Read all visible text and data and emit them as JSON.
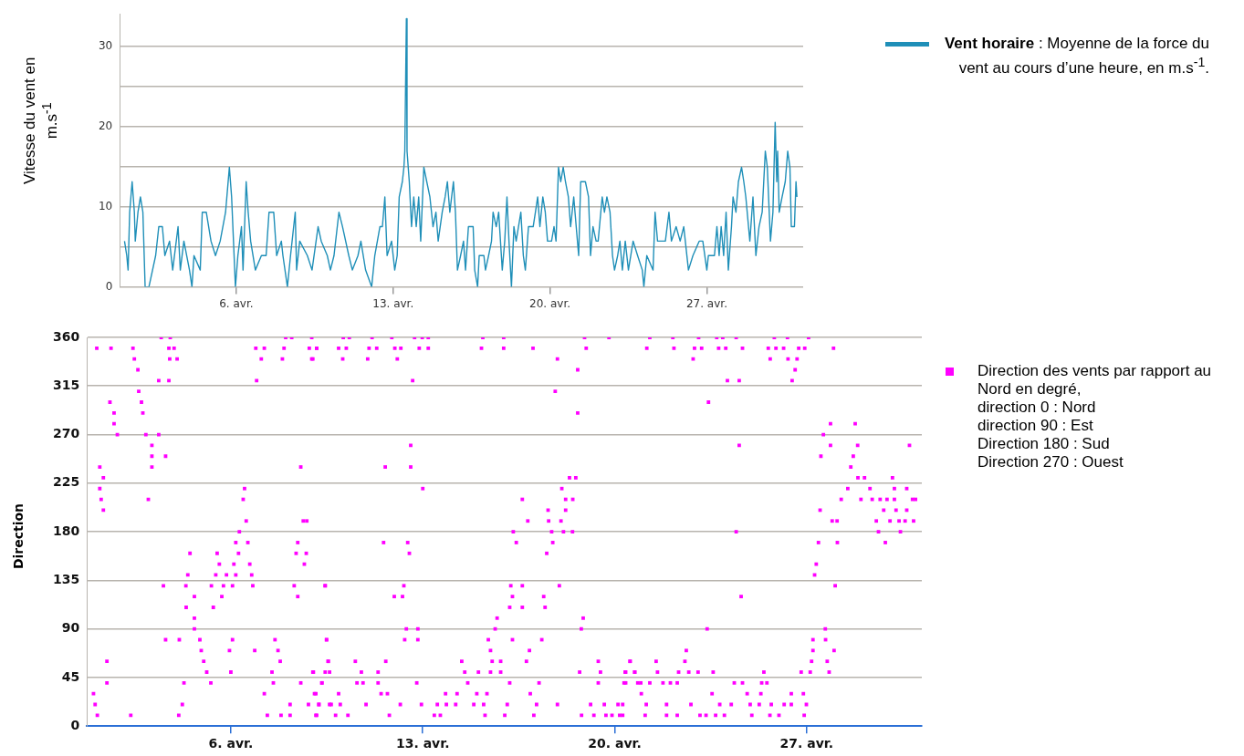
{
  "chart_data": [
    {
      "type": "line",
      "ylabel": "Vitesse du vent en m.s$^{-1}$",
      "legend": "top right",
      "grid": "y",
      "annotations": [
        ": Moyenne de la force du vent au cours d’une heure, en m.s$^{-1}$."
      ],
      "xlim": [
        0.8,
        31.3
      ],
      "xticks": [
        {
          "value": 6,
          "label": "6. avr."
        },
        {
          "value": 13,
          "label": "13. avr."
        },
        {
          "value": 20,
          "label": "20. avr."
        },
        {
          "value": 27,
          "label": "27. avr."
        }
      ],
      "ylim": [
        0,
        34
      ],
      "yticks": [
        0,
        {
          "value": 5,
          "label": null
        },
        10,
        {
          "value": 15,
          "label": null
        },
        20,
        {
          "value": 25,
          "label": null
        },
        30
      ],
      "series": [
        {
          "name": "Vent horaire",
          "color": "#1f8fb8",
          "x": [
            1.01,
            1.11,
            1.17,
            1.24,
            1.35,
            1.45,
            1.49,
            1.61,
            1.72,
            1.83,
            1.93,
            2.1,
            2.4,
            2.54,
            2.7,
            2.81,
            3.02,
            3.16,
            3.4,
            3.5,
            3.66,
            3.91,
            4.02,
            4.11,
            4.39,
            4.48,
            4.66,
            4.87,
            5.07,
            5.28,
            5.52,
            5.69,
            5.79,
            5.96,
            6.07,
            6.23,
            6.3,
            6.44,
            6.53,
            6.64,
            6.85,
            7.12,
            7.33,
            7.46,
            7.67,
            7.8,
            8.01,
            8.08,
            8.28,
            8.42,
            8.63,
            8.69,
            8.83,
            9.17,
            9.38,
            9.65,
            9.79,
            10.06,
            10.2,
            10.36,
            10.58,
            10.74,
            11.02,
            11.18,
            11.43,
            11.56,
            11.77,
            12.04,
            12.18,
            12.41,
            12.52,
            12.63,
            12.73,
            12.93,
            13.07,
            13.18,
            13.27,
            13.41,
            13.48,
            13.52,
            13.59,
            13.62,
            13.72,
            13.82,
            13.92,
            14.03,
            14.14,
            14.23,
            14.37,
            14.5,
            14.64,
            14.78,
            14.91,
            15.01,
            15.19,
            15.32,
            15.42,
            15.53,
            15.69,
            15.78,
            15.87,
            16.01,
            16.14,
            16.23,
            16.36,
            16.57,
            16.64,
            16.77,
            16.84,
            17.05,
            17.12,
            17.26,
            17.39,
            17.46,
            17.6,
            17.71,
            17.87,
            17.98,
            18.08,
            18.17,
            18.28,
            18.39,
            18.49,
            18.7,
            18.81,
            18.9,
            19.04,
            19.25,
            19.35,
            19.45,
            19.55,
            19.68,
            19.79,
            19.89,
            20.07,
            20.18,
            20.27,
            20.38,
            20.48,
            20.59,
            20.69,
            20.82,
            20.92,
            21.06,
            21.17,
            21.28,
            21.37,
            21.58,
            21.72,
            21.81,
            21.92,
            22.06,
            22.15,
            22.33,
            22.43,
            22.54,
            22.68,
            22.79,
            22.88,
            23.02,
            23.12,
            23.23,
            23.36,
            23.5,
            23.71,
            23.91,
            24.12,
            24.19,
            24.32,
            24.6,
            24.69,
            24.8,
            25.15,
            25.31,
            25.42,
            25.63,
            25.81,
            25.97,
            26.18,
            26.38,
            26.66,
            26.82,
            27.0,
            27.07,
            27.34,
            27.45,
            27.55,
            27.64,
            27.75,
            27.86,
            27.96,
            28.1,
            28.17,
            28.3,
            28.41,
            28.55,
            28.65,
            28.74,
            28.92,
            29.06,
            29.19,
            29.33,
            29.47,
            29.54,
            29.61,
            29.7,
            29.84,
            29.95,
            30.05,
            30.12,
            30.16,
            30.23,
            30.36,
            30.5,
            30.61,
            30.71,
            30.77,
            30.91,
            30.98,
            31.02
          ],
          "values": [
            5.7,
            3.9,
            2.1,
            9.3,
            13.1,
            9.3,
            5.7,
            9.3,
            11.2,
            9.3,
            0,
            0,
            3.9,
            7.5,
            7.5,
            3.9,
            5.7,
            2.1,
            7.5,
            2.1,
            5.7,
            2.1,
            0,
            3.9,
            2.1,
            9.3,
            9.3,
            5.7,
            3.9,
            5.7,
            9.3,
            14.9,
            11.2,
            0,
            3.9,
            7.5,
            2.1,
            13.1,
            9.3,
            5.7,
            2.1,
            3.9,
            3.9,
            9.3,
            9.3,
            3.9,
            5.7,
            3.9,
            0,
            3.9,
            9.3,
            2.1,
            5.7,
            3.9,
            2.1,
            7.5,
            5.7,
            3.9,
            2.1,
            3.9,
            9.3,
            7.5,
            3.9,
            2.1,
            3.9,
            5.7,
            2.1,
            0,
            3.9,
            7.5,
            7.5,
            11.2,
            3.9,
            5.7,
            2.1,
            3.9,
            11.2,
            13.1,
            14.9,
            16.9,
            33.4,
            16.9,
            13.1,
            7.5,
            11.2,
            7.5,
            11.2,
            5.7,
            14.9,
            13.1,
            11.2,
            7.5,
            9.3,
            5.7,
            9.3,
            11.2,
            13.1,
            9.3,
            13.1,
            9.3,
            2.1,
            3.9,
            5.7,
            2.1,
            7.5,
            7.5,
            2.1,
            0,
            3.9,
            3.9,
            2.1,
            3.9,
            5.7,
            9.3,
            7.5,
            9.3,
            2.1,
            5.7,
            11.2,
            5.7,
            0,
            7.5,
            5.7,
            9.3,
            3.9,
            2.1,
            7.5,
            7.5,
            9.3,
            11.2,
            7.5,
            11.2,
            9.3,
            5.7,
            5.7,
            7.5,
            5.7,
            14.9,
            13.1,
            14.9,
            13.1,
            11.2,
            7.5,
            11.2,
            7.5,
            3.9,
            13.1,
            13.1,
            11.2,
            3.9,
            7.5,
            5.7,
            5.7,
            11.2,
            9.3,
            11.2,
            9.3,
            3.9,
            2.1,
            3.9,
            5.7,
            2.1,
            5.7,
            2.1,
            5.7,
            3.9,
            2.1,
            0,
            3.9,
            2.1,
            9.3,
            5.7,
            5.7,
            9.3,
            5.7,
            7.5,
            5.7,
            7.5,
            2.1,
            3.9,
            5.7,
            5.7,
            2.1,
            3.9,
            3.9,
            7.5,
            3.9,
            7.5,
            3.9,
            9.3,
            2.1,
            7.5,
            11.2,
            9.3,
            13.1,
            14.9,
            13.1,
            11.2,
            5.7,
            11.2,
            3.9,
            7.5,
            9.3,
            13.1,
            16.9,
            14.9,
            5.7,
            9.3,
            20.5,
            13.1,
            16.9,
            9.3,
            11.2,
            13.1,
            16.9,
            14.9,
            7.5,
            7.5,
            13.1,
            11.2
          ]
        }
      ]
    },
    {
      "type": "scatter",
      "ylabel": "Direction",
      "legend": "right",
      "grid": "y",
      "marker": "square",
      "annotations": [
        "direction 0 : Nord",
        "direction 90 : Est",
        "Direction 180 : Sud",
        "Direction 270 : Ouest"
      ],
      "xlim": [
        0.75,
        31.2
      ],
      "xticks": [
        {
          "value": 6,
          "label": "6. avr."
        },
        {
          "value": 13,
          "label": "13. avr."
        },
        {
          "value": 20,
          "label": "20. avr."
        },
        {
          "value": 27,
          "label": "27. avr."
        }
      ],
      "ylim": [
        0,
        360
      ],
      "yticks": [
        0,
        45,
        90,
        135,
        180,
        225,
        270,
        315,
        360
      ],
      "series": [
        {
          "name": "Direction des vents par rapport au Nord en degré,",
          "color": "#ff00ff",
          "x": [
            1.11,
            0.99,
            1.05,
            1.13,
            1.22,
            1.22,
            1.27,
            1.35,
            1.35,
            1.48,
            1.48,
            1.63,
            1.59,
            1.74,
            1.74,
            1.86,
            2.35,
            2.43,
            2.48,
            2.61,
            2.64,
            2.74,
            2.79,
            2.9,
            2.99,
            3.12,
            3.12,
            3.12,
            3.37,
            3.37,
            3.46,
            3.62,
            3.62,
            3.54,
            3.74,
            3.79,
            3.74,
            3.93,
            3.77,
            4.04,
            4.12,
            4.1,
            4.23,
            4.29,
            4.36,
            4.43,
            4.37,
            4.51,
            4.67,
            4.67,
            4.67,
            4.87,
            4.92,
            5.01,
            5.12,
            5.27,
            5.29,
            5.36,
            5.5,
            5.58,
            5.45,
            5.67,
            5.73,
            5.84,
            5.95,
            6.0,
            6.06,
            6.06,
            6.11,
            6.18,
            6.18,
            6.28,
            6.31,
            6.45,
            6.5,
            6.56,
            6.62,
            6.69,
            6.76,
            6.8,
            6.87,
            6.91,
            6.94,
            7.11,
            7.22,
            7.22,
            7.33,
            7.5,
            7.55,
            7.61,
            7.72,
            7.8,
            7.83,
            7.88,
            7.94,
            8.0,
            8.16,
            8.22,
            8.16,
            8.31,
            8.38,
            8.44,
            8.44,
            8.55,
            8.55,
            8.64,
            8.68,
            8.77,
            8.75,
            8.83,
            8.86,
            8.95,
            8.95,
            9.01,
            9.05,
            9.1,
            9.13,
            9.21,
            9.32,
            9.44,
            9.44,
            9.49,
            9.55,
            9.6,
            9.13,
            8.99,
            8.99,
            9.1,
            9.21,
            9.13,
            9.32,
            9.44,
            9.49,
            9.55,
            9.6,
            9.66,
            9.82,
            9.93,
            9.99,
            9.93,
            10.08,
            10.1,
            10.21,
            10.27,
            10.32,
            10.54,
            10.6,
            10.76,
            10.82,
            10.93,
            10.99,
            11.04,
            11.15,
            11.32,
            11.37,
            11.37,
            11.48,
            11.65,
            11.63,
            11.57,
            11.71,
            11.78,
            11.87,
            11.98,
            12.07,
            11.96,
            12.18,
            12.2,
            12.26,
            12.31,
            12.34,
            12.4,
            12.45,
            12.51,
            12.56,
            12.56,
            12.63,
            12.7,
            12.78,
            12.82,
            12.82,
            12.87,
            12.95,
            13.0,
            12.98,
            13.2,
            13.2,
            13.42,
            13.53,
            13.86,
            14.2,
            13.64,
            13.83,
            14.25,
            14.42,
            14.53,
            14.64,
            14.86,
            14.97,
            15.03,
            15.14,
            15.19,
            15.22,
            15.27,
            15.34,
            15.39,
            15.47,
            15.53,
            15.47,
            15.64,
            15.71,
            15.84,
            15.84,
            15.95,
            15.95,
            15.99,
            16.08,
            16.17,
            16.17,
            16.21,
            16.27,
            16.27,
            16.3,
            16.41,
            16.63,
            16.63,
            16.63,
            16.78,
            16.83,
            16.89,
            16.92,
            17.02,
            17.05,
            17.15,
            17.24,
            17.34,
            17.41,
            17.46,
            17.52,
            17.57,
            17.59,
            17.7,
            17.74,
            17.83,
            17.91,
            17.91,
            17.98,
            18.04,
            18.07,
            18.13,
            18.21,
            18.21,
            18.35,
            18.46,
            18.47,
            18.58,
            18.65,
            18.65,
            18.72,
            18.78,
            18.85,
            18.79,
            18.9,
            18.96,
            19.12,
            19.24,
            19.4,
            19.4,
            19.48,
            19.62,
            19.68,
            19.79,
            19.9,
            20.12,
            20.18,
            20.34,
            20.38,
            20.56,
            20.73,
            20.84,
            21.28,
            21.17,
            20.56,
            20.4,
            20.4,
            20.29,
            20.29,
            20.73,
            20.95,
            20.97,
            21.15,
            21.11,
            21.28,
            21.51,
            21.56,
            21.76,
            21.89,
            21.89,
            22.03,
            22.12,
            22.16,
            22.28,
            22.28,
            22.33,
            22.56,
            22.61,
            22.7,
            22.78,
            22.86,
            22.91,
            23.06,
            23.17,
            23.04,
            23.11,
            23.33,
            23.37,
            23.42,
            23.55,
            23.59,
            23.68,
            23.79,
            23.72,
            23.83,
            23.94,
            24.0,
            24.05,
            24.11,
            24.25,
            24.36,
            24.43,
            24.43,
            24.54,
            24.54,
            24.61,
            24.66,
            24.66,
            24.83,
            25.0,
            24.94,
            25.27,
            25.33,
            25.36,
            25.44,
            25.55,
            25.6,
            25.67,
            25.66,
            25.71,
            25.82,
            25.88,
            25.99,
            26.16,
            26.18,
            26.3,
            26.32,
            26.44,
            26.44,
            26.47,
            26.58,
            26.65,
            26.71,
            26.8,
            26.88,
            26.93,
            26.99,
            26.91,
            27.07,
            27.13,
            27.18,
            27.23,
            27.23,
            27.29,
            27.35,
            27.43,
            27.49,
            27.52,
            27.61,
            27.68,
            27.69,
            27.75,
            27.82,
            27.87,
            27.87,
            27.93,
            28.0,
            28.04,
            28.12,
            28.11,
            27.98,
            28.26,
            28.5,
            28.61,
            28.7,
            28.77,
            28.86,
            28.87,
            28.98,
            29.11,
            29.31,
            29.39,
            29.54,
            29.62,
            29.68,
            29.81,
            29.87,
            29.93,
            30.04,
            30.13,
            30.2,
            30.2,
            30.26,
            30.37,
            30.42,
            30.59,
            30.65,
            30.65,
            30.75,
            30.86,
            30.9,
            30.97
          ],
          "values": [
            350,
            30,
            20,
            10,
            240,
            220,
            210,
            230,
            200,
            60,
            40,
            350,
            300,
            290,
            280,
            270,
            10,
            350,
            340,
            330,
            310,
            300,
            290,
            270,
            210,
            260,
            250,
            240,
            320,
            270,
            360,
            250,
            80,
            130,
            320,
            360,
            350,
            350,
            340,
            340,
            80,
            10,
            20,
            40,
            130,
            140,
            110,
            160,
            120,
            100,
            90,
            80,
            70,
            60,
            50,
            40,
            130,
            110,
            160,
            150,
            140,
            120,
            130,
            140,
            70,
            50,
            130,
            80,
            150,
            170,
            140,
            160,
            180,
            210,
            220,
            190,
            170,
            150,
            140,
            130,
            70,
            350,
            320,
            340,
            350,
            30,
            10,
            50,
            40,
            80,
            70,
            60,
            10,
            340,
            350,
            360,
            20,
            360,
            10,
            130,
            160,
            170,
            120,
            240,
            40,
            190,
            150,
            190,
            160,
            20,
            350,
            360,
            340,
            50,
            30,
            10,
            350,
            20,
            40,
            130,
            50,
            80,
            60,
            20,
            350,
            340,
            50,
            30,
            20,
            10,
            40,
            130,
            80,
            60,
            50,
            20,
            10,
            30,
            20,
            350,
            340,
            360,
            350,
            10,
            360,
            60,
            40,
            50,
            40,
            20,
            340,
            350,
            360,
            350,
            50,
            40,
            30,
            60,
            240,
            170,
            30,
            10,
            360,
            350,
            340,
            120,
            20,
            350,
            120,
            130,
            80,
            90,
            170,
            160,
            260,
            240,
            320,
            360,
            40,
            90,
            80,
            350,
            20,
            220,
            360,
            350,
            360,
            10,
            20,
            20,
            20,
            10,
            30,
            30,
            60,
            50,
            40,
            20,
            30,
            50,
            350,
            360,
            20,
            10,
            30,
            80,
            70,
            60,
            50,
            90,
            100,
            60,
            50,
            350,
            360,
            10,
            20,
            40,
            110,
            130,
            120,
            80,
            180,
            170,
            210,
            130,
            110,
            60,
            190,
            70,
            30,
            350,
            10,
            20,
            40,
            80,
            120,
            110,
            160,
            200,
            190,
            180,
            170,
            310,
            340,
            20,
            130,
            190,
            220,
            180,
            200,
            210,
            230,
            180,
            210,
            230,
            330,
            290,
            50,
            90,
            100,
            10,
            360,
            350,
            20,
            10,
            60,
            40,
            50,
            20,
            10,
            360,
            10,
            20,
            10,
            40,
            50,
            60,
            50,
            40,
            360,
            350,
            60,
            50,
            40,
            20,
            10,
            50,
            40,
            30,
            20,
            10,
            40,
            60,
            50,
            40,
            20,
            10,
            40,
            360,
            350,
            40,
            10,
            50,
            60,
            70,
            50,
            20,
            340,
            350,
            360,
            350,
            50,
            10,
            10,
            90,
            300,
            30,
            50,
            10,
            350,
            360,
            20,
            360,
            10,
            350,
            320,
            20,
            40,
            360,
            180,
            320,
            260,
            120,
            350,
            40,
            30,
            10,
            20,
            20,
            30,
            40,
            50,
            40,
            350,
            340,
            10,
            20,
            360,
            350,
            10,
            350,
            20,
            360,
            340,
            30,
            20,
            320,
            330,
            340,
            350,
            50,
            30,
            350,
            20,
            10,
            360,
            50,
            60,
            80,
            70,
            140,
            150,
            170,
            200,
            250,
            270,
            90,
            80,
            60,
            50,
            280,
            260,
            190,
            70,
            130,
            170,
            190,
            350,
            210,
            220,
            240,
            250,
            280,
            260,
            230,
            210,
            230,
            220,
            210,
            190,
            180,
            210,
            200,
            170,
            210,
            190,
            230,
            220,
            210,
            200,
            190,
            180,
            190,
            200,
            220,
            260,
            210,
            190,
            210
          ]
        }
      ]
    }
  ]
}
